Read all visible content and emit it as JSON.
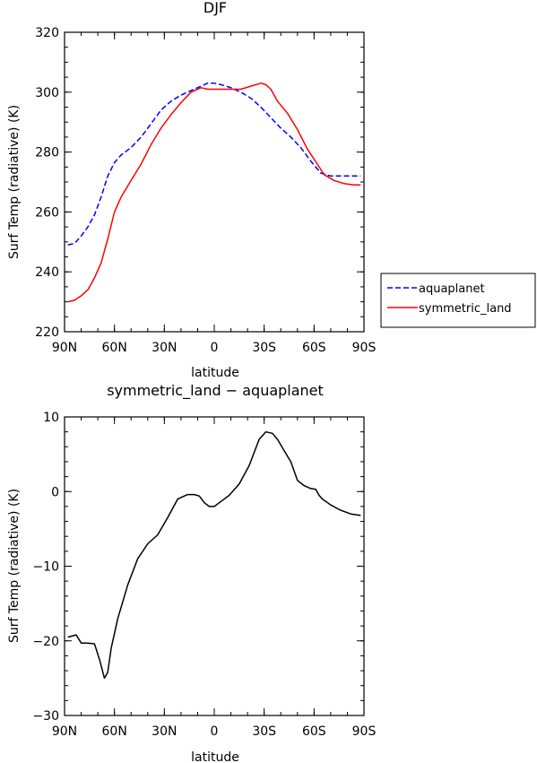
{
  "chart_data": [
    {
      "type": "line",
      "title": "DJF",
      "xlabel": "latitude",
      "ylabel": "Surf Temp (radiative) (K)",
      "xlim": [
        -90,
        90
      ],
      "ylim": [
        220,
        320
      ],
      "xticks": [
        -90,
        -60,
        -30,
        0,
        30,
        60,
        90
      ],
      "xtick_labels": [
        "90N",
        "60N",
        "30N",
        "0",
        "30S",
        "60S",
        "90S"
      ],
      "yticks": [
        220,
        240,
        260,
        280,
        300,
        320
      ],
      "ytick_labels": [
        "220",
        "240",
        "260",
        "280",
        "300",
        "320"
      ],
      "legend_position": "right",
      "series": [
        {
          "name": "aquaplanet",
          "color": "#0000ff",
          "dash": "dashed",
          "x": [
            -88,
            -84,
            -80,
            -76,
            -72,
            -68,
            -64,
            -60,
            -56,
            -50,
            -44,
            -38,
            -32,
            -26,
            -20,
            -14,
            -8,
            -4,
            0,
            4,
            10,
            16,
            22,
            28,
            34,
            40,
            46,
            52,
            58,
            64,
            70,
            76,
            82,
            88
          ],
          "values": [
            249,
            249.5,
            252,
            255,
            259,
            265,
            272,
            276.5,
            279,
            281.5,
            285,
            289.5,
            294,
            297,
            299,
            300.5,
            302,
            303,
            303,
            302.5,
            301.5,
            300,
            298,
            295,
            291.5,
            288,
            285,
            281.5,
            277,
            273,
            272,
            272,
            272,
            272
          ]
        },
        {
          "name": "symmetric_land",
          "color": "#ff0000",
          "dash": "solid",
          "x": [
            -88,
            -84,
            -80,
            -76,
            -72,
            -68,
            -64,
            -60,
            -56,
            -50,
            -44,
            -38,
            -32,
            -26,
            -20,
            -14,
            -8,
            -4,
            0,
            4,
            10,
            16,
            22,
            28,
            31,
            34,
            38,
            44,
            50,
            56,
            62,
            66,
            72,
            78,
            84,
            88
          ],
          "values": [
            230,
            230.5,
            232,
            234,
            238,
            243,
            251,
            260,
            265,
            270.5,
            276,
            282.5,
            288,
            292.5,
            296.5,
            300,
            301.5,
            301,
            301,
            301,
            301,
            301,
            302,
            303,
            302.5,
            301,
            297,
            293,
            287.5,
            281,
            276,
            272.5,
            270.5,
            269.5,
            269,
            269
          ]
        }
      ]
    },
    {
      "type": "line",
      "title": "symmetric_land − aquaplanet",
      "xlabel": "latitude",
      "ylabel": "Surf Temp (radiative) (K)",
      "xlim": [
        -90,
        90
      ],
      "ylim": [
        -30,
        10
      ],
      "xticks": [
        -90,
        -60,
        -30,
        0,
        30,
        60,
        90
      ],
      "xtick_labels": [
        "90N",
        "60N",
        "30N",
        "0",
        "30S",
        "60S",
        "90S"
      ],
      "yticks": [
        -30,
        -20,
        -10,
        0,
        10
      ],
      "ytick_labels": [
        "−30",
        "−20",
        "−10",
        "0",
        "10"
      ],
      "series": [
        {
          "color": "#000000",
          "dash": "solid",
          "x": [
            -88,
            -83,
            -80,
            -76,
            -72,
            -69,
            -66,
            -64,
            -62,
            -58,
            -52,
            -46,
            -40,
            -34,
            -28,
            -22,
            -16,
            -12,
            -9,
            -6,
            -3,
            0,
            3,
            9,
            15,
            21,
            27,
            31,
            35,
            38,
            42,
            46,
            50,
            54,
            58,
            61,
            63,
            65,
            70,
            76,
            82,
            88
          ],
          "values": [
            -19.5,
            -19.2,
            -20.3,
            -20.3,
            -20.4,
            -22.5,
            -25,
            -24.2,
            -21,
            -17,
            -12.5,
            -9,
            -7,
            -5.8,
            -3.5,
            -1,
            -0.4,
            -0.4,
            -0.6,
            -1.5,
            -2,
            -2,
            -1.5,
            -0.5,
            1,
            3.5,
            7,
            8,
            7.8,
            7,
            5.5,
            4,
            1.5,
            0.8,
            0.4,
            0.3,
            -0.5,
            -1,
            -1.8,
            -2.5,
            -3,
            -3.2
          ]
        }
      ]
    }
  ]
}
